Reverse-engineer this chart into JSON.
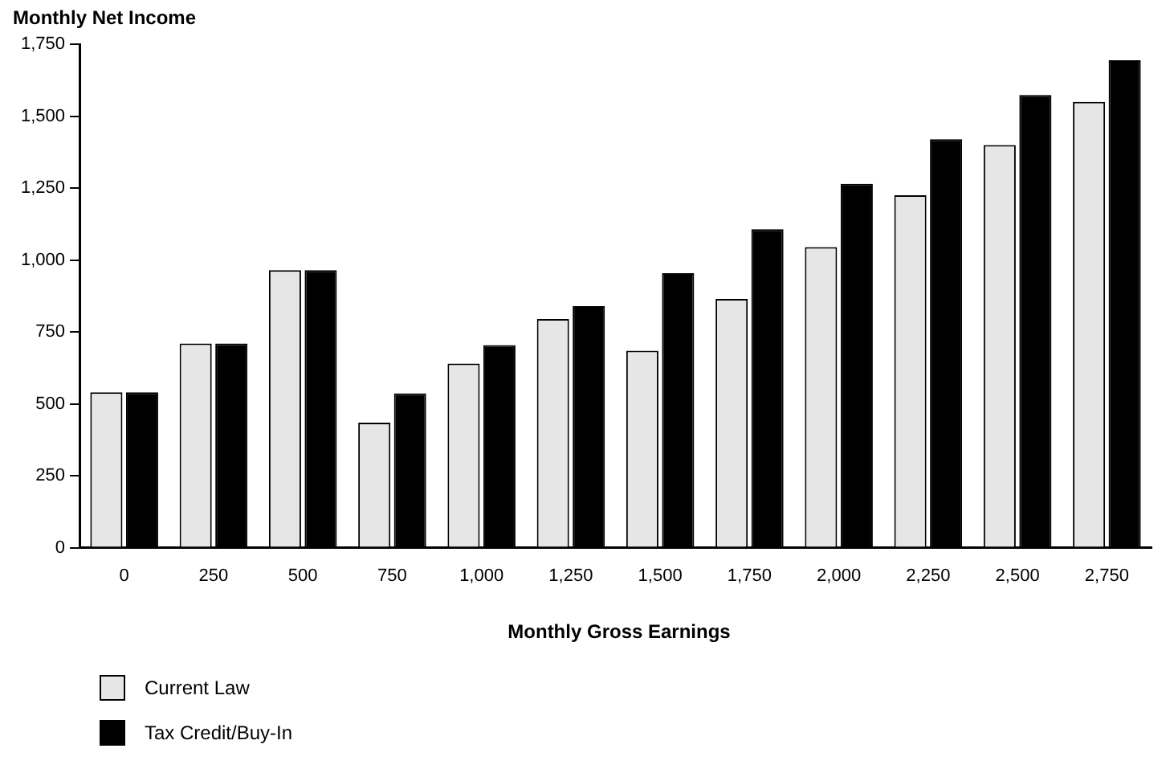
{
  "chart_data": {
    "type": "bar",
    "ylabel": "Monthly Net Income",
    "xlabel": "Monthly Gross Earnings",
    "categories": [
      "0",
      "250",
      "500",
      "750",
      "1,000",
      "1,250",
      "1,500",
      "1,750",
      "2,000",
      "2,250",
      "2,500",
      "2,750"
    ],
    "series": [
      {
        "name": "Current Law",
        "color": "#e6e6e6",
        "values": [
          540,
          710,
          965,
          435,
          640,
          795,
          685,
          865,
          1045,
          1225,
          1400,
          1550
        ]
      },
      {
        "name": "Tax Credit/Buy-In",
        "color": "#000000",
        "values": [
          540,
          710,
          965,
          537,
          704,
          840,
          954,
          1107,
          1265,
          1420,
          1574,
          1695
        ]
      }
    ],
    "ylim": [
      0,
      1750
    ],
    "yticks": [
      0,
      250,
      500,
      750,
      {
        "value": 1000,
        "label": "1,000"
      },
      {
        "value": 1250,
        "label": "1,250"
      },
      {
        "value": 1500,
        "label": "1,500"
      },
      {
        "value": 1750,
        "label": "1,750"
      }
    ],
    "legend": "bottom left"
  }
}
